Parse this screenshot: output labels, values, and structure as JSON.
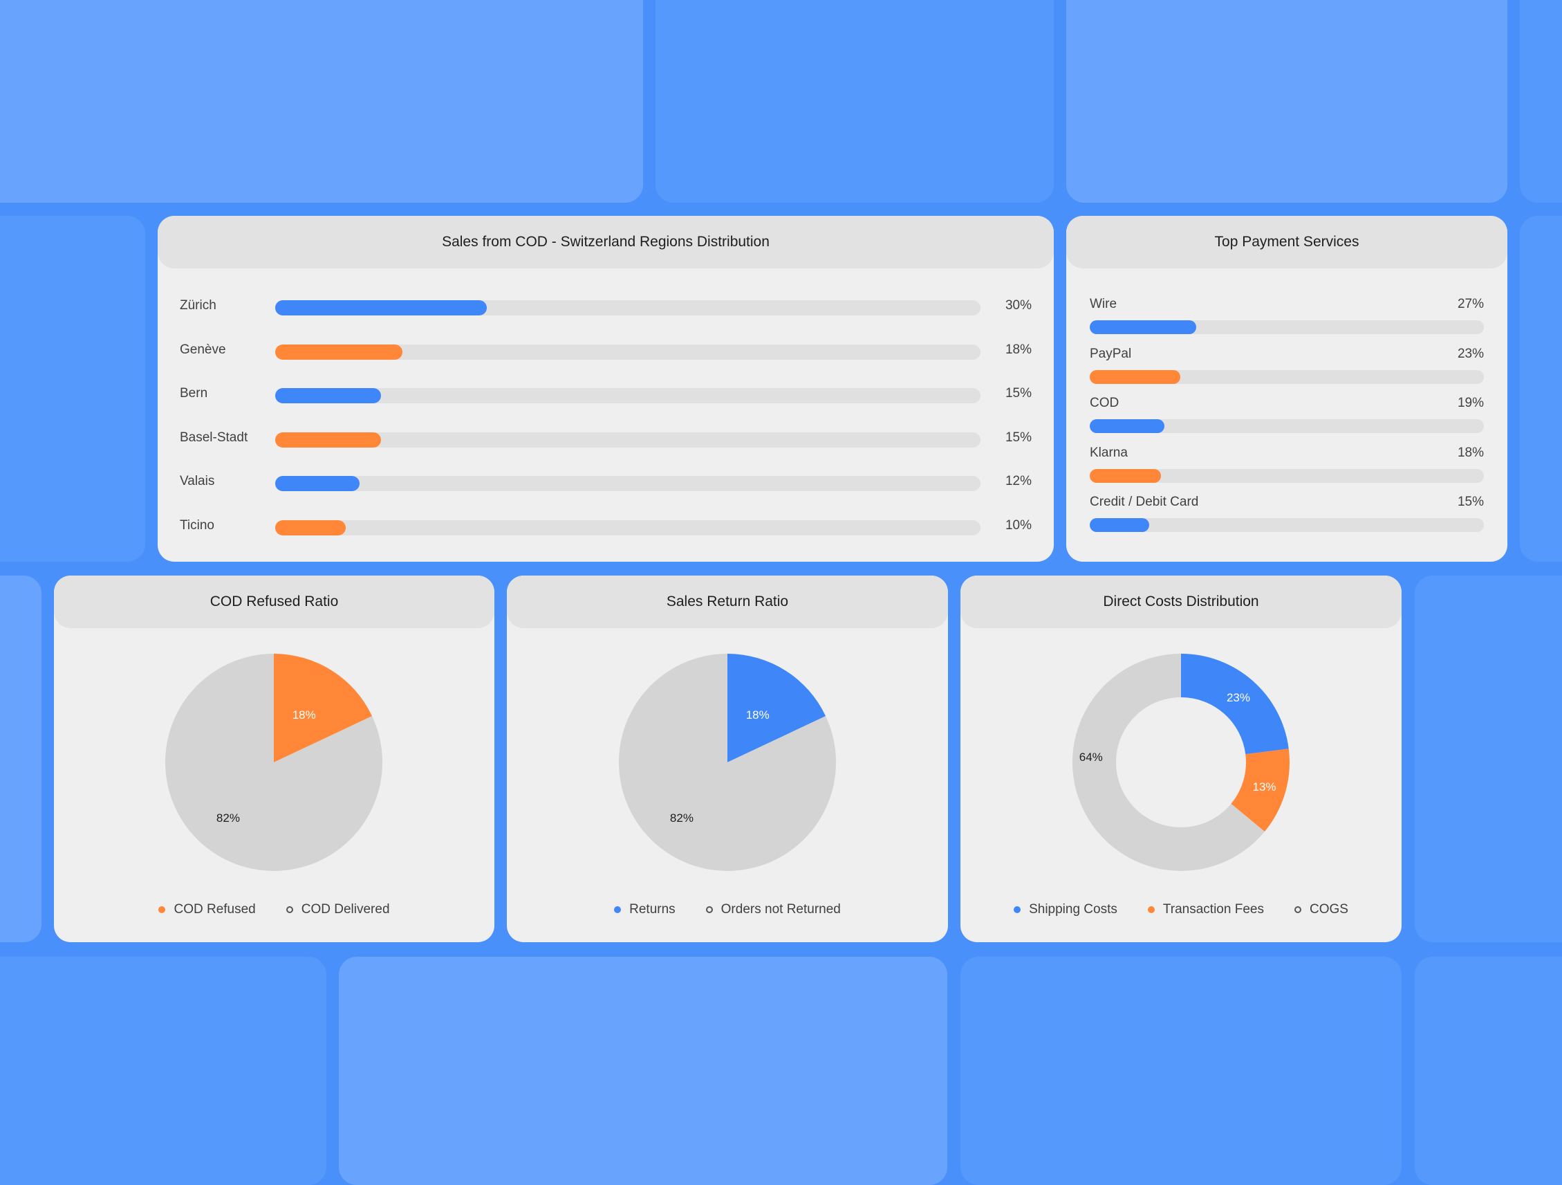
{
  "colors": {
    "blue": "#3f86f8",
    "orange": "#ff8737",
    "gray": "#d4d4d4",
    "background": "#4a90fb"
  },
  "regions_card": {
    "title": "Sales from COD -  Switzerland Regions Distribution",
    "rows": [
      {
        "label": "Zürich",
        "pct_label": "30%",
        "value": 30,
        "color": "blue"
      },
      {
        "label": "Genève",
        "pct_label": "18%",
        "value": 18,
        "color": "orange"
      },
      {
        "label": "Bern",
        "pct_label": "15%",
        "value": 15,
        "color": "blue"
      },
      {
        "label": "Basel-Stadt",
        "pct_label": "15%",
        "value": 15,
        "color": "orange"
      },
      {
        "label": "Valais",
        "pct_label": "12%",
        "value": 12,
        "color": "blue"
      },
      {
        "label": "Ticino",
        "pct_label": "10%",
        "value": 10,
        "color": "orange"
      }
    ]
  },
  "payments_card": {
    "title": "Top Payment Services",
    "rows": [
      {
        "label": "Wire",
        "pct_label": "27%",
        "value": 27,
        "color": "blue"
      },
      {
        "label": "PayPal",
        "pct_label": "23%",
        "value": 23,
        "color": "orange"
      },
      {
        "label": "COD",
        "pct_label": "19%",
        "value": 19,
        "color": "blue"
      },
      {
        "label": "Klarna",
        "pct_label": "18%",
        "value": 18,
        "color": "orange"
      },
      {
        "label": "Credit / Debit Card",
        "pct_label": "15%",
        "value": 15,
        "color": "blue"
      }
    ]
  },
  "cod_refused_card": {
    "title": "COD Refused Ratio",
    "legend": [
      "COD Refused",
      "COD Delivered"
    ]
  },
  "sales_return_card": {
    "title": "Sales Return Ratio",
    "legend": [
      "Returns",
      "Orders not Returned"
    ]
  },
  "direct_costs_card": {
    "title": "Direct Costs Distribution",
    "legend": [
      "Shipping Costs",
      "Transaction Fees",
      "COGS"
    ]
  },
  "chart_data": [
    {
      "type": "bar",
      "orientation": "horizontal",
      "title": "Sales from COD -  Switzerland Regions Distribution",
      "categories": [
        "Zürich",
        "Genève",
        "Bern",
        "Basel-Stadt",
        "Valais",
        "Ticino"
      ],
      "values": [
        30,
        18,
        15,
        15,
        12,
        10
      ],
      "xlim": [
        0,
        100
      ]
    },
    {
      "type": "bar",
      "orientation": "horizontal",
      "title": "Top Payment Services",
      "categories": [
        "Wire",
        "PayPal",
        "COD",
        "Klarna",
        "Credit / Debit Card"
      ],
      "values": [
        27,
        23,
        19,
        18,
        15
      ],
      "xlim": [
        0,
        100
      ]
    },
    {
      "type": "pie",
      "title": "COD Refused Ratio",
      "slices": [
        {
          "label": "COD Refused",
          "value": 18,
          "value_label": "18%",
          "color": "#ff8737"
        },
        {
          "label": "COD Delivered",
          "value": 82,
          "value_label": "82%",
          "color": "#d4d4d4"
        }
      ],
      "legend": "bottom"
    },
    {
      "type": "pie",
      "title": "Sales Return Ratio",
      "slices": [
        {
          "label": "Returns",
          "value": 18,
          "value_label": "18%",
          "color": "#3f86f8"
        },
        {
          "label": "Orders not Returned",
          "value": 82,
          "value_label": "82%",
          "color": "#d4d4d4"
        }
      ],
      "legend": "bottom"
    },
    {
      "type": "pie",
      "style": "donut",
      "title": "Direct Costs Distribution",
      "slices": [
        {
          "label": "Shipping Costs",
          "value": 23,
          "value_label": "23%",
          "color": "#3f86f8"
        },
        {
          "label": "Transaction Fees",
          "value": 13,
          "value_label": "13%",
          "color": "#ff8737"
        },
        {
          "label": "COGS",
          "value": 64,
          "value_label": "64%",
          "color": "#d4d4d4"
        }
      ],
      "legend": "bottom"
    }
  ]
}
